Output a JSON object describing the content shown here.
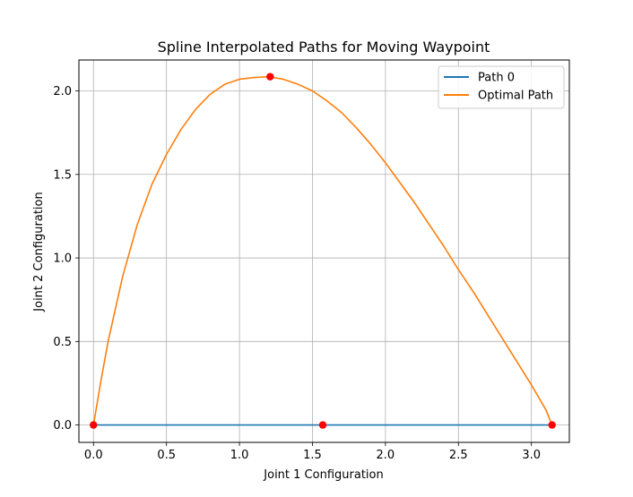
{
  "chart_data": {
    "type": "line",
    "title": "Spline Interpolated Paths for Moving Waypoint",
    "xlabel": "Joint 1 Configuration",
    "ylabel": "Joint 2 Configuration",
    "xlim": [
      -0.1,
      3.26
    ],
    "ylim": [
      -0.104,
      2.185
    ],
    "xticks": [
      0.0,
      0.5,
      1.0,
      1.5,
      2.0,
      2.5,
      3.0
    ],
    "xtick_labels": [
      "0.0",
      "0.5",
      "1.0",
      "1.5",
      "2.0",
      "2.5",
      "3.0"
    ],
    "yticks": [
      0.0,
      0.5,
      1.0,
      1.5,
      2.0
    ],
    "ytick_labels": [
      "0.0",
      "0.5",
      "1.0",
      "1.5",
      "2.0"
    ],
    "grid": true,
    "legend_position": "top-right",
    "series": [
      {
        "name": "Path 0",
        "color": "#1f77b4",
        "x": [
          0.0,
          1.5708,
          3.1416
        ],
        "y": [
          0.0,
          0.0,
          0.0
        ]
      },
      {
        "name": "Optimal Path",
        "color": "#ff7f0e",
        "x": [
          0.0,
          0.05,
          0.1,
          0.2,
          0.3,
          0.4,
          0.5,
          0.6,
          0.7,
          0.8,
          0.9,
          1.0,
          1.1,
          1.2,
          1.3,
          1.4,
          1.5,
          1.6,
          1.7,
          1.8,
          1.9,
          2.0,
          2.1,
          2.2,
          2.3,
          2.4,
          2.5,
          2.6,
          2.7,
          2.8,
          2.9,
          3.0,
          3.1,
          3.1416
        ],
        "y": [
          0.0,
          0.26,
          0.5,
          0.89,
          1.2,
          1.44,
          1.62,
          1.77,
          1.89,
          1.98,
          2.04,
          2.07,
          2.08,
          2.085,
          2.07,
          2.04,
          2.0,
          1.94,
          1.87,
          1.78,
          1.68,
          1.57,
          1.45,
          1.33,
          1.2,
          1.07,
          0.93,
          0.8,
          0.66,
          0.52,
          0.38,
          0.24,
          0.09,
          0.0
        ]
      }
    ],
    "waypoints": {
      "color": "#ff0000",
      "x": [
        0.0,
        1.5708,
        3.1416,
        1.21
      ],
      "y": [
        0.0,
        0.0,
        0.0,
        2.085
      ]
    }
  }
}
